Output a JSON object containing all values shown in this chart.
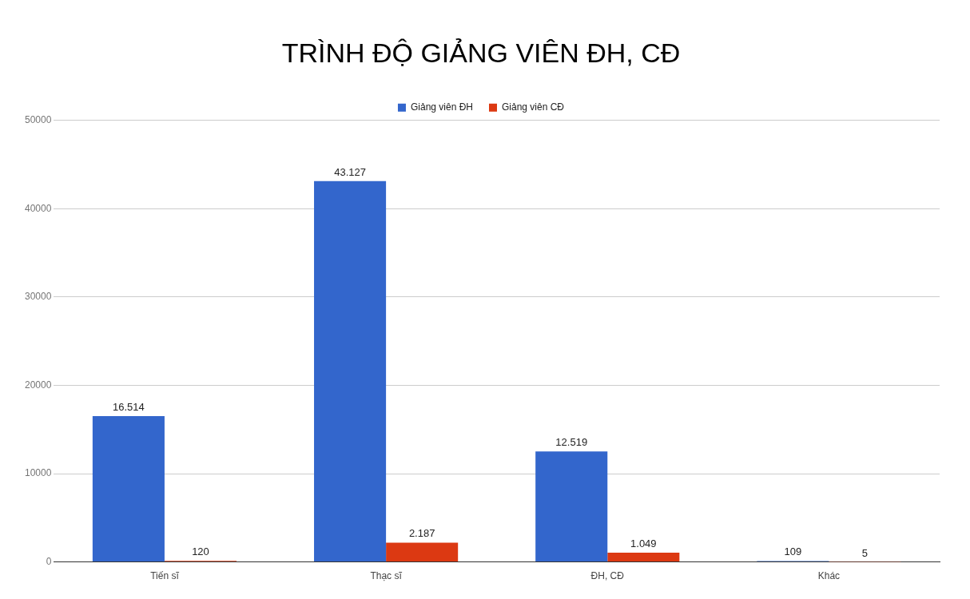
{
  "chart_data": {
    "type": "bar",
    "title": "TRÌNH ĐỘ GIẢNG VIÊN ĐH, CĐ",
    "categories": [
      "Tiến sĩ",
      "Thạc sĩ",
      "ĐH, CĐ",
      "Khác"
    ],
    "series": [
      {
        "name": "Giảng viên ĐH",
        "color": "#3366cc",
        "values": [
          16514,
          43127,
          12519,
          109
        ],
        "value_labels": [
          "16.514",
          "43.127",
          "12.519",
          "109"
        ]
      },
      {
        "name": "Giảng viên CĐ",
        "color": "#dc3912",
        "values": [
          120,
          2187,
          1049,
          5
        ],
        "value_labels": [
          "120",
          "2.187",
          "1.049",
          "5"
        ]
      }
    ],
    "ylim": [
      0,
      50000
    ],
    "yticks": [
      0,
      10000,
      20000,
      30000,
      40000,
      50000
    ],
    "grid": "y",
    "legend": "top"
  }
}
